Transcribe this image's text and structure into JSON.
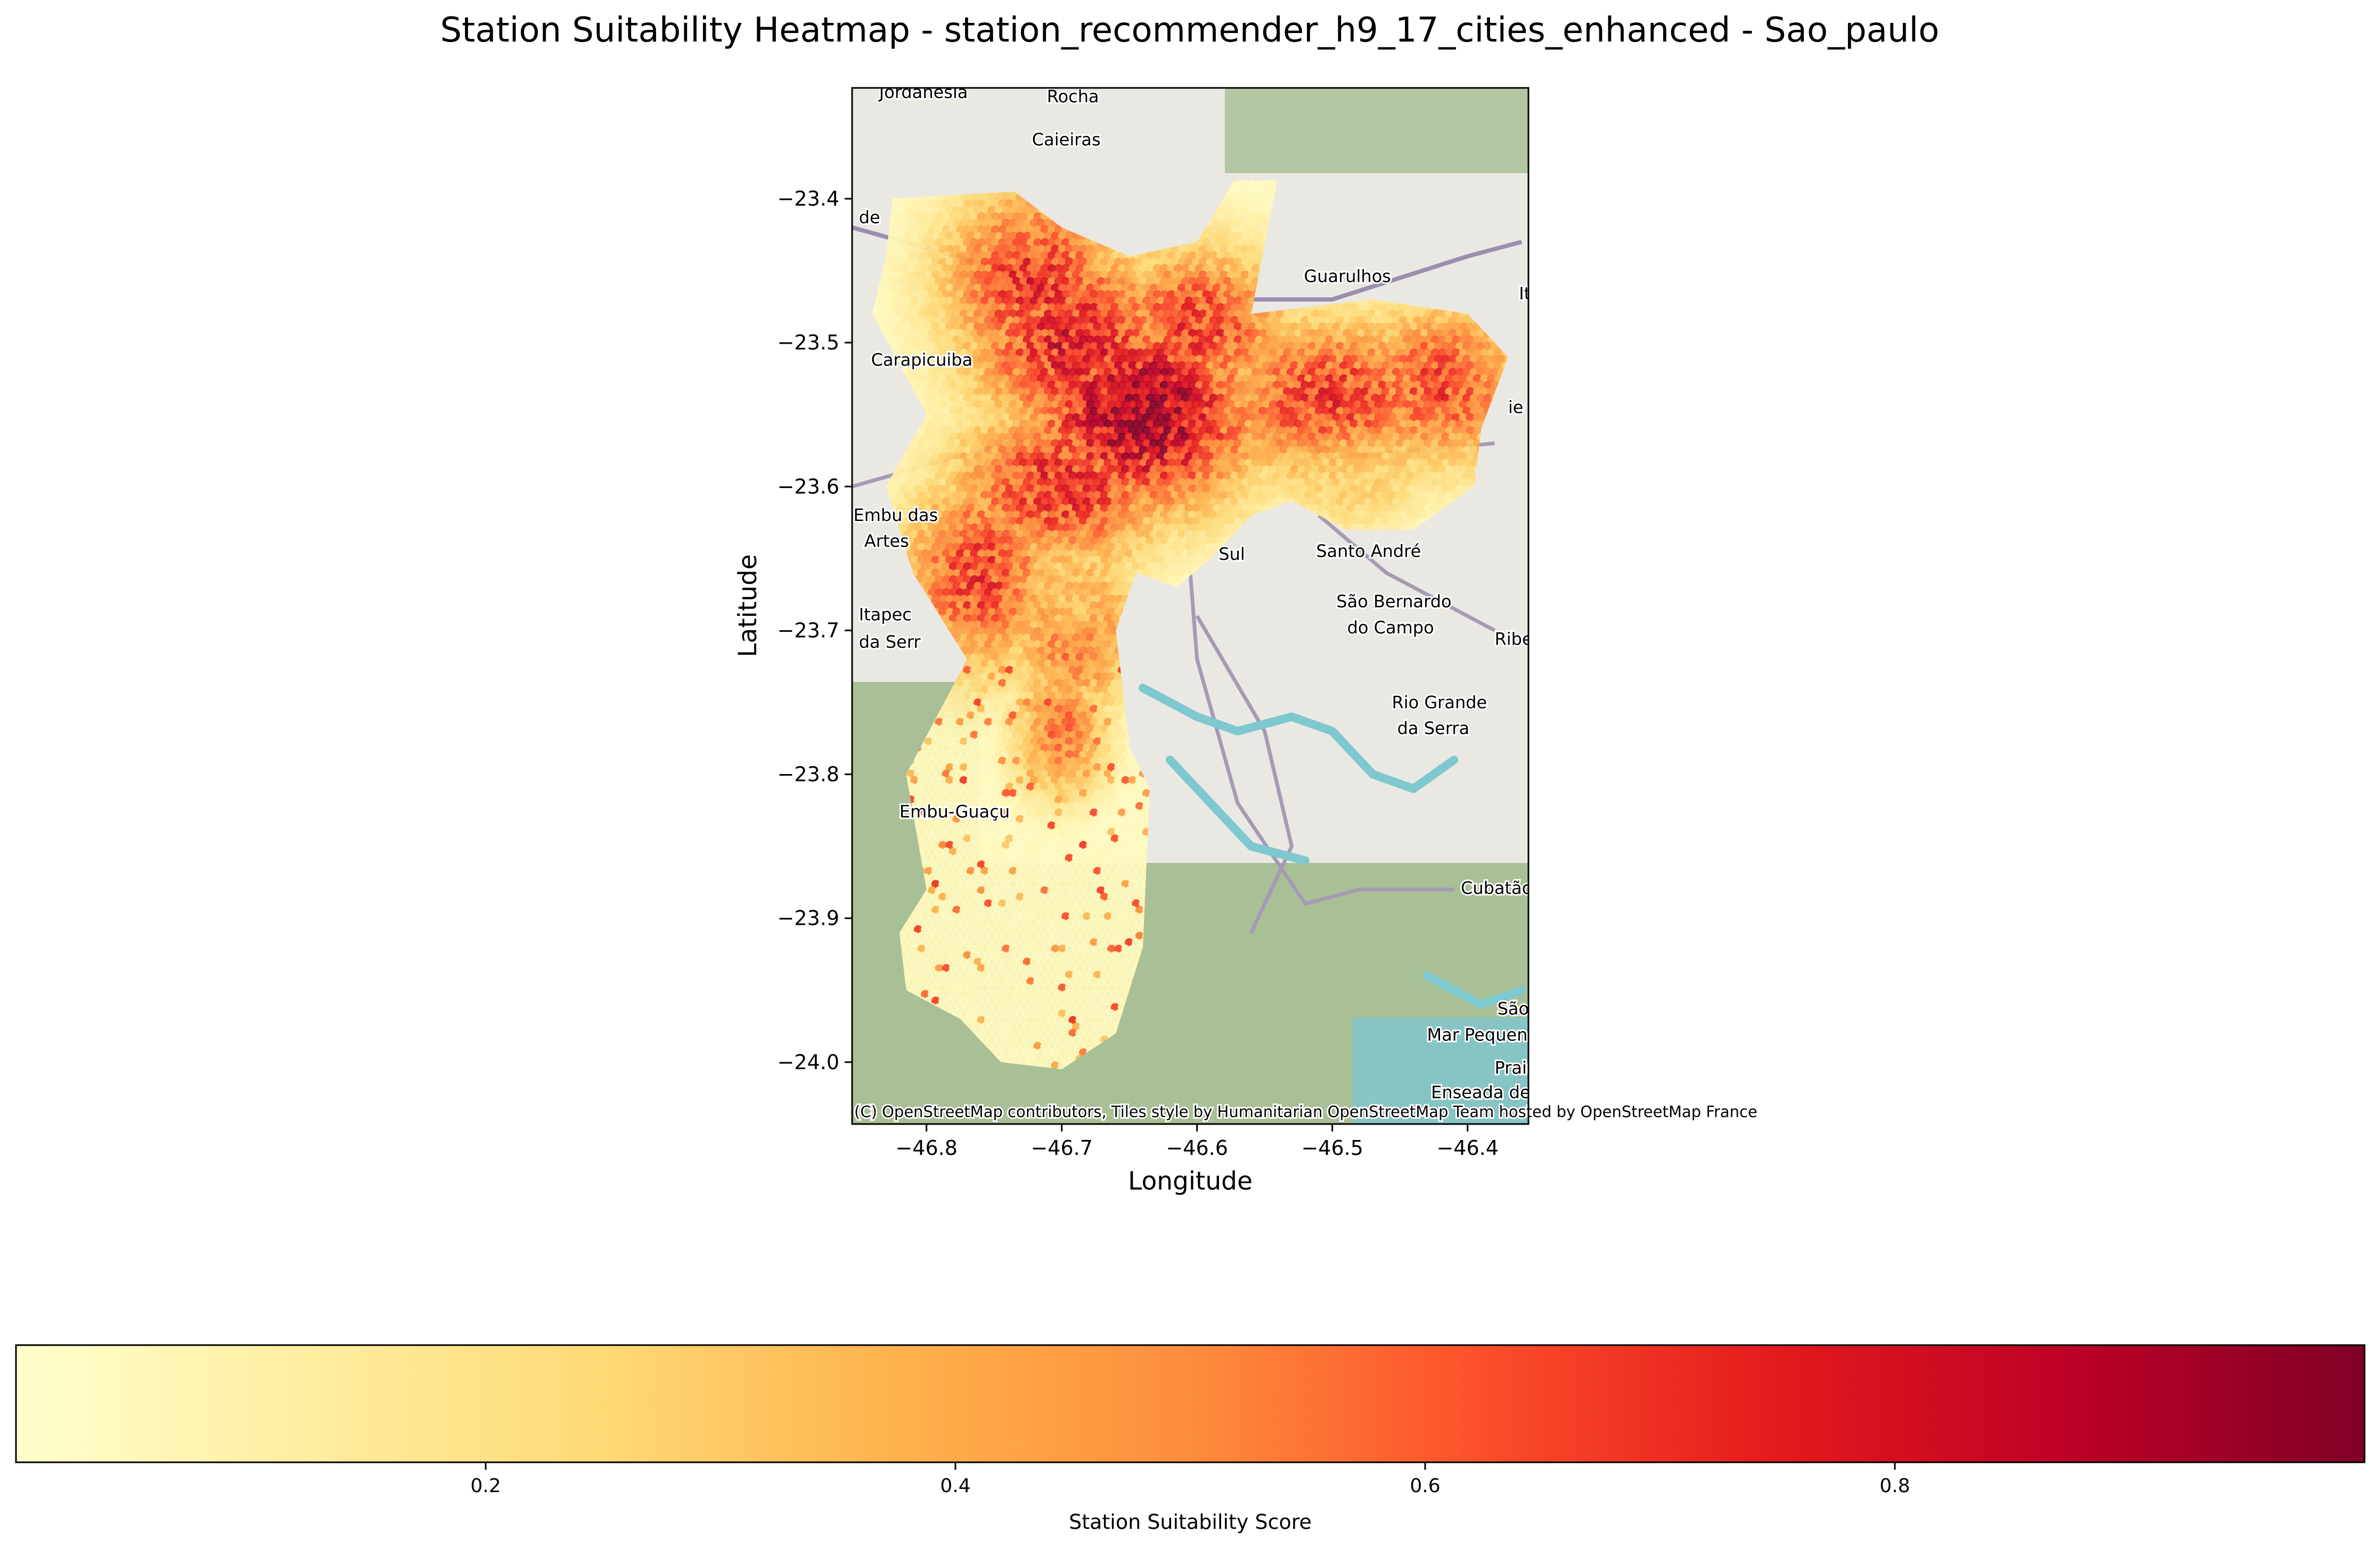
{
  "chart_data": {
    "type": "heatmap",
    "title": "Station Suitability Heatmap - station_recommender_h9_17_cities_enhanced - Sao_paulo",
    "xlabel": "Longitude",
    "ylabel": "Latitude",
    "xlim": [
      -46.855,
      -46.355
    ],
    "ylim": [
      -24.043,
      -23.323
    ],
    "xticks": [
      -46.8,
      -46.7,
      -46.6,
      -46.5,
      -46.4
    ],
    "xtick_labels": [
      "−46.8",
      "−46.7",
      "−46.6",
      "−46.5",
      "−46.4"
    ],
    "yticks": [
      -23.4,
      -23.5,
      -23.6,
      -23.7,
      -23.8,
      -23.9,
      -24.0
    ],
    "ytick_labels": [
      "−23.4",
      "−23.5",
      "−23.6",
      "−23.7",
      "−23.8",
      "−23.9",
      "−24.0"
    ],
    "attribution": "(C) OpenStreetMap contributors, Tiles style by Humanitarian OpenStreetMap Team hosted by OpenStreetMap France",
    "colorbar": {
      "label": "Station Suitability Score",
      "range": [
        0.0,
        1.0
      ],
      "ticks": [
        0.2,
        0.4,
        0.6,
        0.8
      ],
      "tick_labels": [
        "0.2",
        "0.4",
        "0.6",
        "0.8"
      ],
      "colormap": "YlOrRd"
    },
    "colormap_stops": [
      "#ffffcc",
      "#ffeda0",
      "#fed976",
      "#feb24c",
      "#fd8d3c",
      "#fc4e2a",
      "#e31a1c",
      "#bd0026",
      "#800026"
    ],
    "map_labels": [
      {
        "text": "Jordanesia",
        "lon": -46.835,
        "lat": -23.33
      },
      {
        "text": "Rocha",
        "lon": -46.711,
        "lat": -23.333
      },
      {
        "text": "Caieiras",
        "lon": -46.722,
        "lat": -23.363
      },
      {
        "text": "de",
        "lon": -46.85,
        "lat": -23.417
      },
      {
        "text": "Guarulhos",
        "lon": -46.521,
        "lat": -23.458
      },
      {
        "text": "It",
        "lon": -46.362,
        "lat": -23.47
      },
      {
        "text": "Carapicuiba",
        "lon": -46.841,
        "lat": -23.516
      },
      {
        "text": "ie",
        "lon": -46.37,
        "lat": -23.549
      },
      {
        "text": "Embu das",
        "lon": -46.854,
        "lat": -23.624
      },
      {
        "text": "Artes",
        "lon": -46.846,
        "lat": -23.642
      },
      {
        "text": "Santo André",
        "lon": -46.512,
        "lat": -23.649
      },
      {
        "text": "Sul",
        "lon": -46.584,
        "lat": -23.651
      },
      {
        "text": "São Bernardo",
        "lon": -46.497,
        "lat": -23.684
      },
      {
        "text": "do Campo",
        "lon": -46.489,
        "lat": -23.702
      },
      {
        "text": "Itapec",
        "lon": -46.85,
        "lat": -23.693
      },
      {
        "text": "da Serr",
        "lon": -46.85,
        "lat": -23.712
      },
      {
        "text": "Ribeirão P",
        "lon": -46.38,
        "lat": -23.71
      },
      {
        "text": "Rio Grande",
        "lon": -46.456,
        "lat": -23.754
      },
      {
        "text": "da Serra",
        "lon": -46.452,
        "lat": -23.772
      },
      {
        "text": "Embu-Guaçu",
        "lon": -46.82,
        "lat": -23.83
      },
      {
        "text": "Cubatão",
        "lon": -46.405,
        "lat": -23.883
      },
      {
        "text": "São Vi",
        "lon": -46.378,
        "lat": -23.967
      },
      {
        "text": "Mar Pequeno",
        "lon": -46.43,
        "lat": -23.985
      },
      {
        "text": "Praia Gran",
        "lon": -46.38,
        "lat": -24.008
      },
      {
        "text": "Enseada de Itaipu",
        "lon": -46.427,
        "lat": -24.025
      }
    ],
    "score_hotspots": [
      {
        "lon": -46.64,
        "lat": -23.55,
        "score": 0.97,
        "spread_lon": 0.075,
        "spread_lat": 0.06
      },
      {
        "lon": -46.69,
        "lat": -23.5,
        "score": 0.78,
        "spread_lon": 0.07,
        "spread_lat": 0.06
      },
      {
        "lon": -46.72,
        "lat": -23.46,
        "score": 0.72,
        "spread_lon": 0.06,
        "spread_lat": 0.06
      },
      {
        "lon": -46.6,
        "lat": -23.49,
        "score": 0.7,
        "spread_lon": 0.06,
        "spread_lat": 0.05
      },
      {
        "lon": -46.5,
        "lat": -23.54,
        "score": 0.7,
        "spread_lon": 0.08,
        "spread_lat": 0.05
      },
      {
        "lon": -46.42,
        "lat": -23.53,
        "score": 0.66,
        "spread_lon": 0.06,
        "spread_lat": 0.05
      },
      {
        "lon": -46.7,
        "lat": -23.6,
        "score": 0.75,
        "spread_lon": 0.07,
        "spread_lat": 0.05
      },
      {
        "lon": -46.76,
        "lat": -23.66,
        "score": 0.7,
        "spread_lon": 0.05,
        "spread_lat": 0.06
      },
      {
        "lon": -46.69,
        "lat": -23.7,
        "score": 0.62,
        "spread_lon": 0.04,
        "spread_lat": 0.05
      },
      {
        "lon": -46.7,
        "lat": -23.77,
        "score": 0.56,
        "spread_lon": 0.03,
        "spread_lat": 0.04
      }
    ],
    "score_coldspots": [
      {
        "lon": -46.48,
        "lat": -23.6,
        "score": 0.28,
        "spread_lon": 0.04,
        "spread_lat": 0.03
      },
      {
        "lon": -46.69,
        "lat": -23.68,
        "score": 0.33,
        "spread_lon": 0.03,
        "spread_lat": 0.03
      }
    ],
    "rail_line": [
      [
        -46.855,
        -23.42
      ],
      [
        -46.74,
        -23.45
      ],
      [
        -46.64,
        -23.46
      ],
      [
        -46.56,
        -23.47
      ],
      [
        -46.5,
        -23.47
      ],
      [
        -46.4,
        -23.44
      ],
      [
        -46.36,
        -23.43
      ]
    ],
    "road_network": [
      [
        [
          -46.61,
          -23.6
        ],
        [
          -46.6,
          -23.72
        ],
        [
          -46.57,
          -23.82
        ],
        [
          -46.52,
          -23.89
        ],
        [
          -46.48,
          -23.88
        ],
        [
          -46.41,
          -23.88
        ]
      ],
      [
        [
          -46.6,
          -23.69
        ],
        [
          -46.55,
          -23.77
        ],
        [
          -46.53,
          -23.85
        ],
        [
          -46.56,
          -23.91
        ]
      ],
      [
        [
          -46.66,
          -23.55
        ],
        [
          -46.78,
          -23.58
        ],
        [
          -46.855,
          -23.6
        ]
      ],
      [
        [
          -46.6,
          -23.55
        ],
        [
          -46.5,
          -23.58
        ],
        [
          -46.38,
          -23.57
        ]
      ],
      [
        [
          -46.51,
          -23.62
        ],
        [
          -46.46,
          -23.66
        ],
        [
          -46.38,
          -23.7
        ]
      ]
    ],
    "reservoir_shores": [
      [
        [
          -46.64,
          -23.74
        ],
        [
          -46.6,
          -23.76
        ],
        [
          -46.57,
          -23.77
        ],
        [
          -46.53,
          -23.76
        ],
        [
          -46.5,
          -23.77
        ],
        [
          -46.47,
          -23.8
        ],
        [
          -46.44,
          -23.81
        ],
        [
          -46.41,
          -23.79
        ]
      ],
      [
        [
          -46.62,
          -23.79
        ],
        [
          -46.59,
          -23.82
        ],
        [
          -46.56,
          -23.85
        ],
        [
          -46.52,
          -23.86
        ]
      ],
      [
        [
          -46.43,
          -23.94
        ],
        [
          -46.39,
          -23.96
        ],
        [
          -46.36,
          -23.95
        ]
      ]
    ]
  }
}
